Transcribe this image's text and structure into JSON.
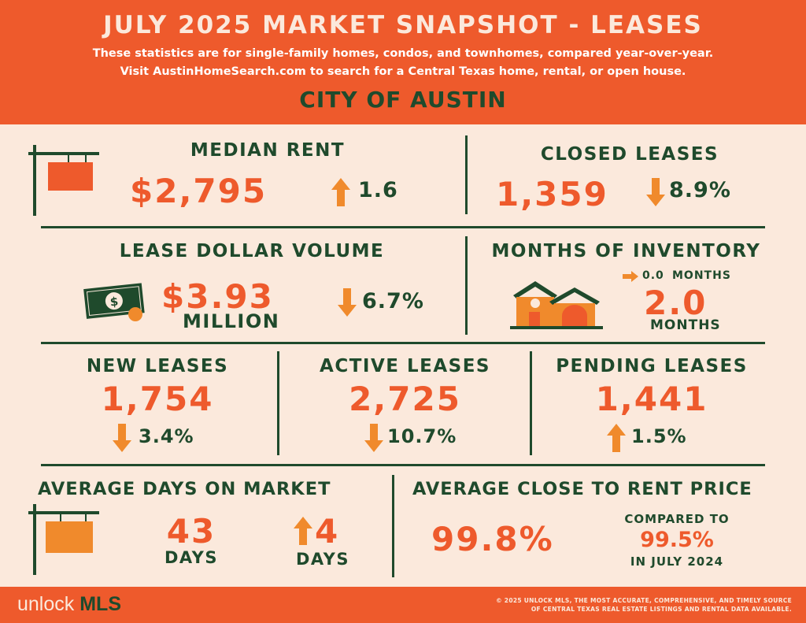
{
  "header": {
    "title": "JULY 2025 MARKET SNAPSHOT - LEASES",
    "subtitle_line1": "These statistics are for single-family homes, condos, and townhomes, compared year-over-year.",
    "subtitle_line2": "Visit AustinHomeSearch.com to search for a Central Texas home, rental, or open house.",
    "city": "CITY OF AUSTIN"
  },
  "median_rent": {
    "label": "MEDIAN RENT",
    "value": "$2,795",
    "change": "1.6",
    "direction": "up"
  },
  "closed_leases": {
    "label": "CLOSED LEASES",
    "value": "1,359",
    "change": "8.9%",
    "direction": "down"
  },
  "lease_dollar_volume": {
    "label": "LEASE DOLLAR VOLUME",
    "value": "$3.93",
    "unit": "MILLION",
    "change": "6.7%",
    "direction": "down"
  },
  "months_of_inventory": {
    "label": "MONTHS OF INVENTORY",
    "change": "0.0",
    "change_unit": "MONTHS",
    "value": "2.0",
    "unit": "MONTHS",
    "direction": "flat"
  },
  "new_leases": {
    "label": "NEW LEASES",
    "value": "1,754",
    "change": "3.4%",
    "direction": "down"
  },
  "active_leases": {
    "label": "ACTIVE LEASES",
    "value": "2,725",
    "change": "10.7%",
    "direction": "down"
  },
  "pending_leases": {
    "label": "PENDING LEASES",
    "value": "1,441",
    "change": "1.5%",
    "direction": "up"
  },
  "avg_days_on_market": {
    "label": "AVERAGE DAYS ON MARKET",
    "value": "43",
    "unit": "DAYS",
    "change": "4",
    "change_unit": "DAYS",
    "direction": "up"
  },
  "avg_close_to_rent": {
    "label": "AVERAGE CLOSE TO RENT PRICE",
    "value": "99.8%",
    "compared_label": "COMPARED TO",
    "compared_value": "99.5%",
    "compared_period": "IN JULY 2024"
  },
  "footer": {
    "logo_part1": "unlock ",
    "logo_part2": "MLS",
    "copyright_line1": "© 2025 UNLOCK MLS, THE MOST ACCURATE, COMPREHENSIVE, AND TIMELY SOURCE",
    "copyright_line2": "OF CENTRAL TEXAS REAL ESTATE LISTINGS AND RENTAL DATA AVAILABLE."
  },
  "colors": {
    "orange": "#ee5a2c",
    "green": "#1f4a2c",
    "cream": "#fbe9dc",
    "arrow": "#f08a2c"
  },
  "icons": [
    "hanging-sign-icon",
    "money-bill-icon",
    "house-icon",
    "arrow-up-icon",
    "arrow-down-icon",
    "arrow-right-icon"
  ]
}
